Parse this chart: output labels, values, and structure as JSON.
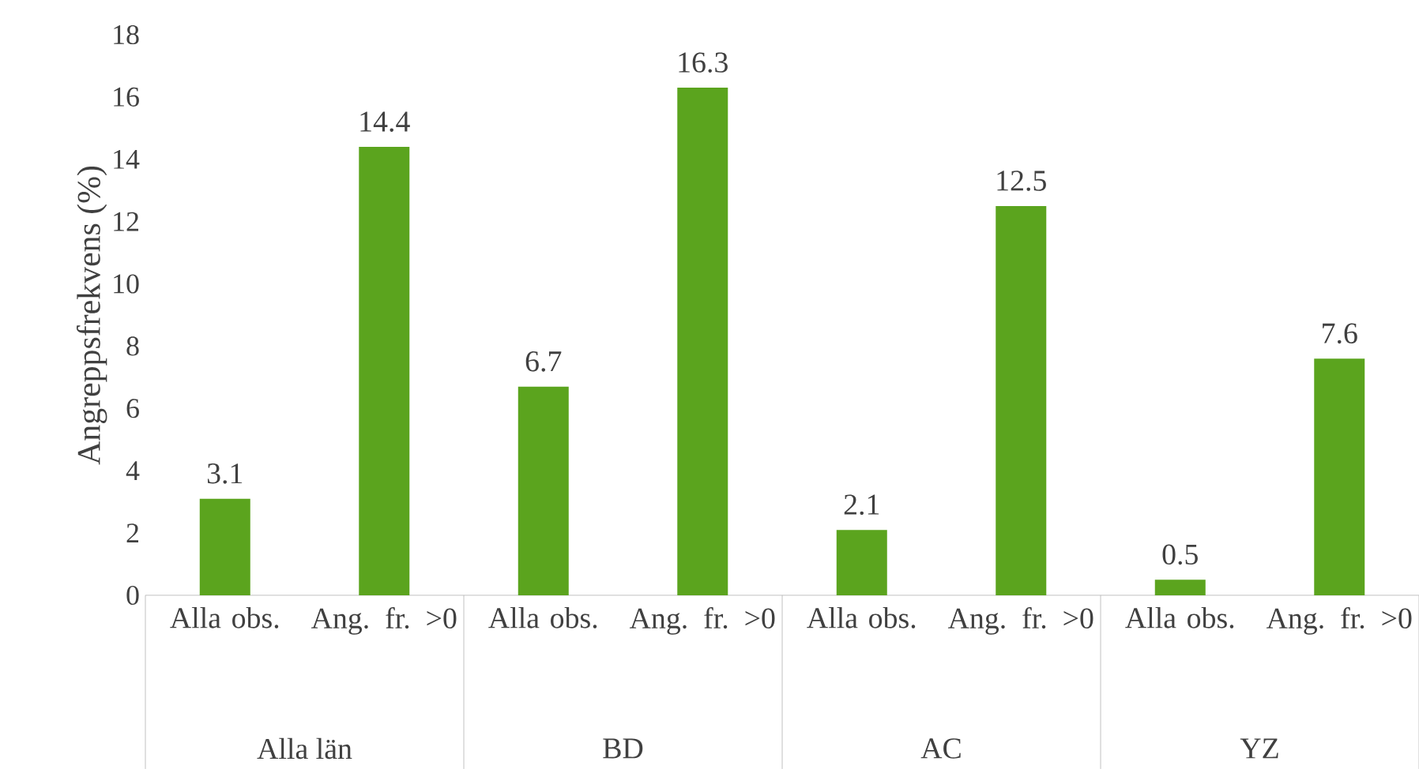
{
  "chart_data": {
    "type": "bar",
    "ylabel": "Angreppsfrekvens (%)",
    "categories": [
      "Alla obs.",
      "Ang. fr. >0",
      "Alla obs.",
      "Ang. fr. >0",
      "Alla obs.",
      "Ang. fr. >0",
      "Alla obs.",
      "Ang. fr. >0"
    ],
    "values": [
      3.1,
      14.4,
      6.7,
      16.3,
      2.1,
      12.5,
      0.5,
      7.6
    ],
    "color": "#5ba41e",
    "ylim": [
      0,
      18
    ],
    "yticks": [
      0,
      2,
      4,
      6,
      8,
      10,
      12,
      14,
      16,
      18
    ],
    "data_labels": true,
    "grid": false,
    "legend": false,
    "annotations": [
      "Alla län",
      "BD",
      "AC",
      "YZ"
    ]
  }
}
